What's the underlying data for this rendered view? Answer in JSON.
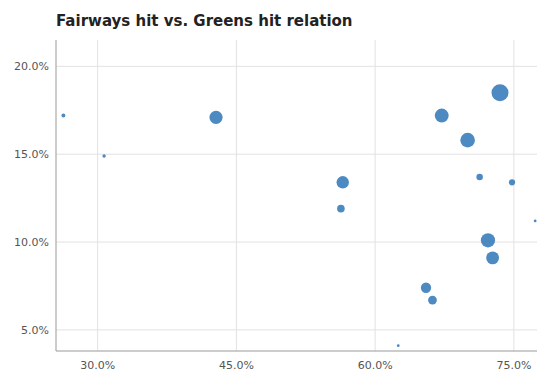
{
  "chart_data": {
    "type": "scatter",
    "title": "Fairways hit vs. Greens hit relation",
    "color": "#2E75B6",
    "x": [
      0.263,
      0.307,
      0.428,
      0.565,
      0.563,
      0.625,
      0.655,
      0.662,
      0.672,
      0.7,
      0.713,
      0.722,
      0.727,
      0.735,
      0.748,
      0.773
    ],
    "values": [
      0.172,
      0.149,
      0.171,
      0.134,
      0.119,
      0.041,
      0.074,
      0.067,
      0.172,
      0.158,
      0.137,
      0.101,
      0.091,
      0.185,
      0.134,
      0.112
    ],
    "sizes": [
      8,
      6,
      90,
      80,
      30,
      4,
      55,
      40,
      100,
      110,
      22,
      105,
      85,
      150,
      20,
      4
    ],
    "xlim": [
      0.255,
      0.775
    ],
    "ylim": [
      0.038,
      0.215
    ],
    "xticks": [
      {
        "value": 0.3,
        "label": "30.0%"
      },
      {
        "value": 0.45,
        "label": "45.0%"
      },
      {
        "value": 0.6,
        "label": "60.0%"
      },
      {
        "value": 0.75,
        "label": "75.0%"
      }
    ],
    "yticks": [
      {
        "value": 0.05,
        "label": "5.0%"
      },
      {
        "value": 0.1,
        "label": "10.0%"
      },
      {
        "value": 0.15,
        "label": "15.0%"
      },
      {
        "value": 0.2,
        "label": "20.0%"
      }
    ],
    "grid": true
  }
}
